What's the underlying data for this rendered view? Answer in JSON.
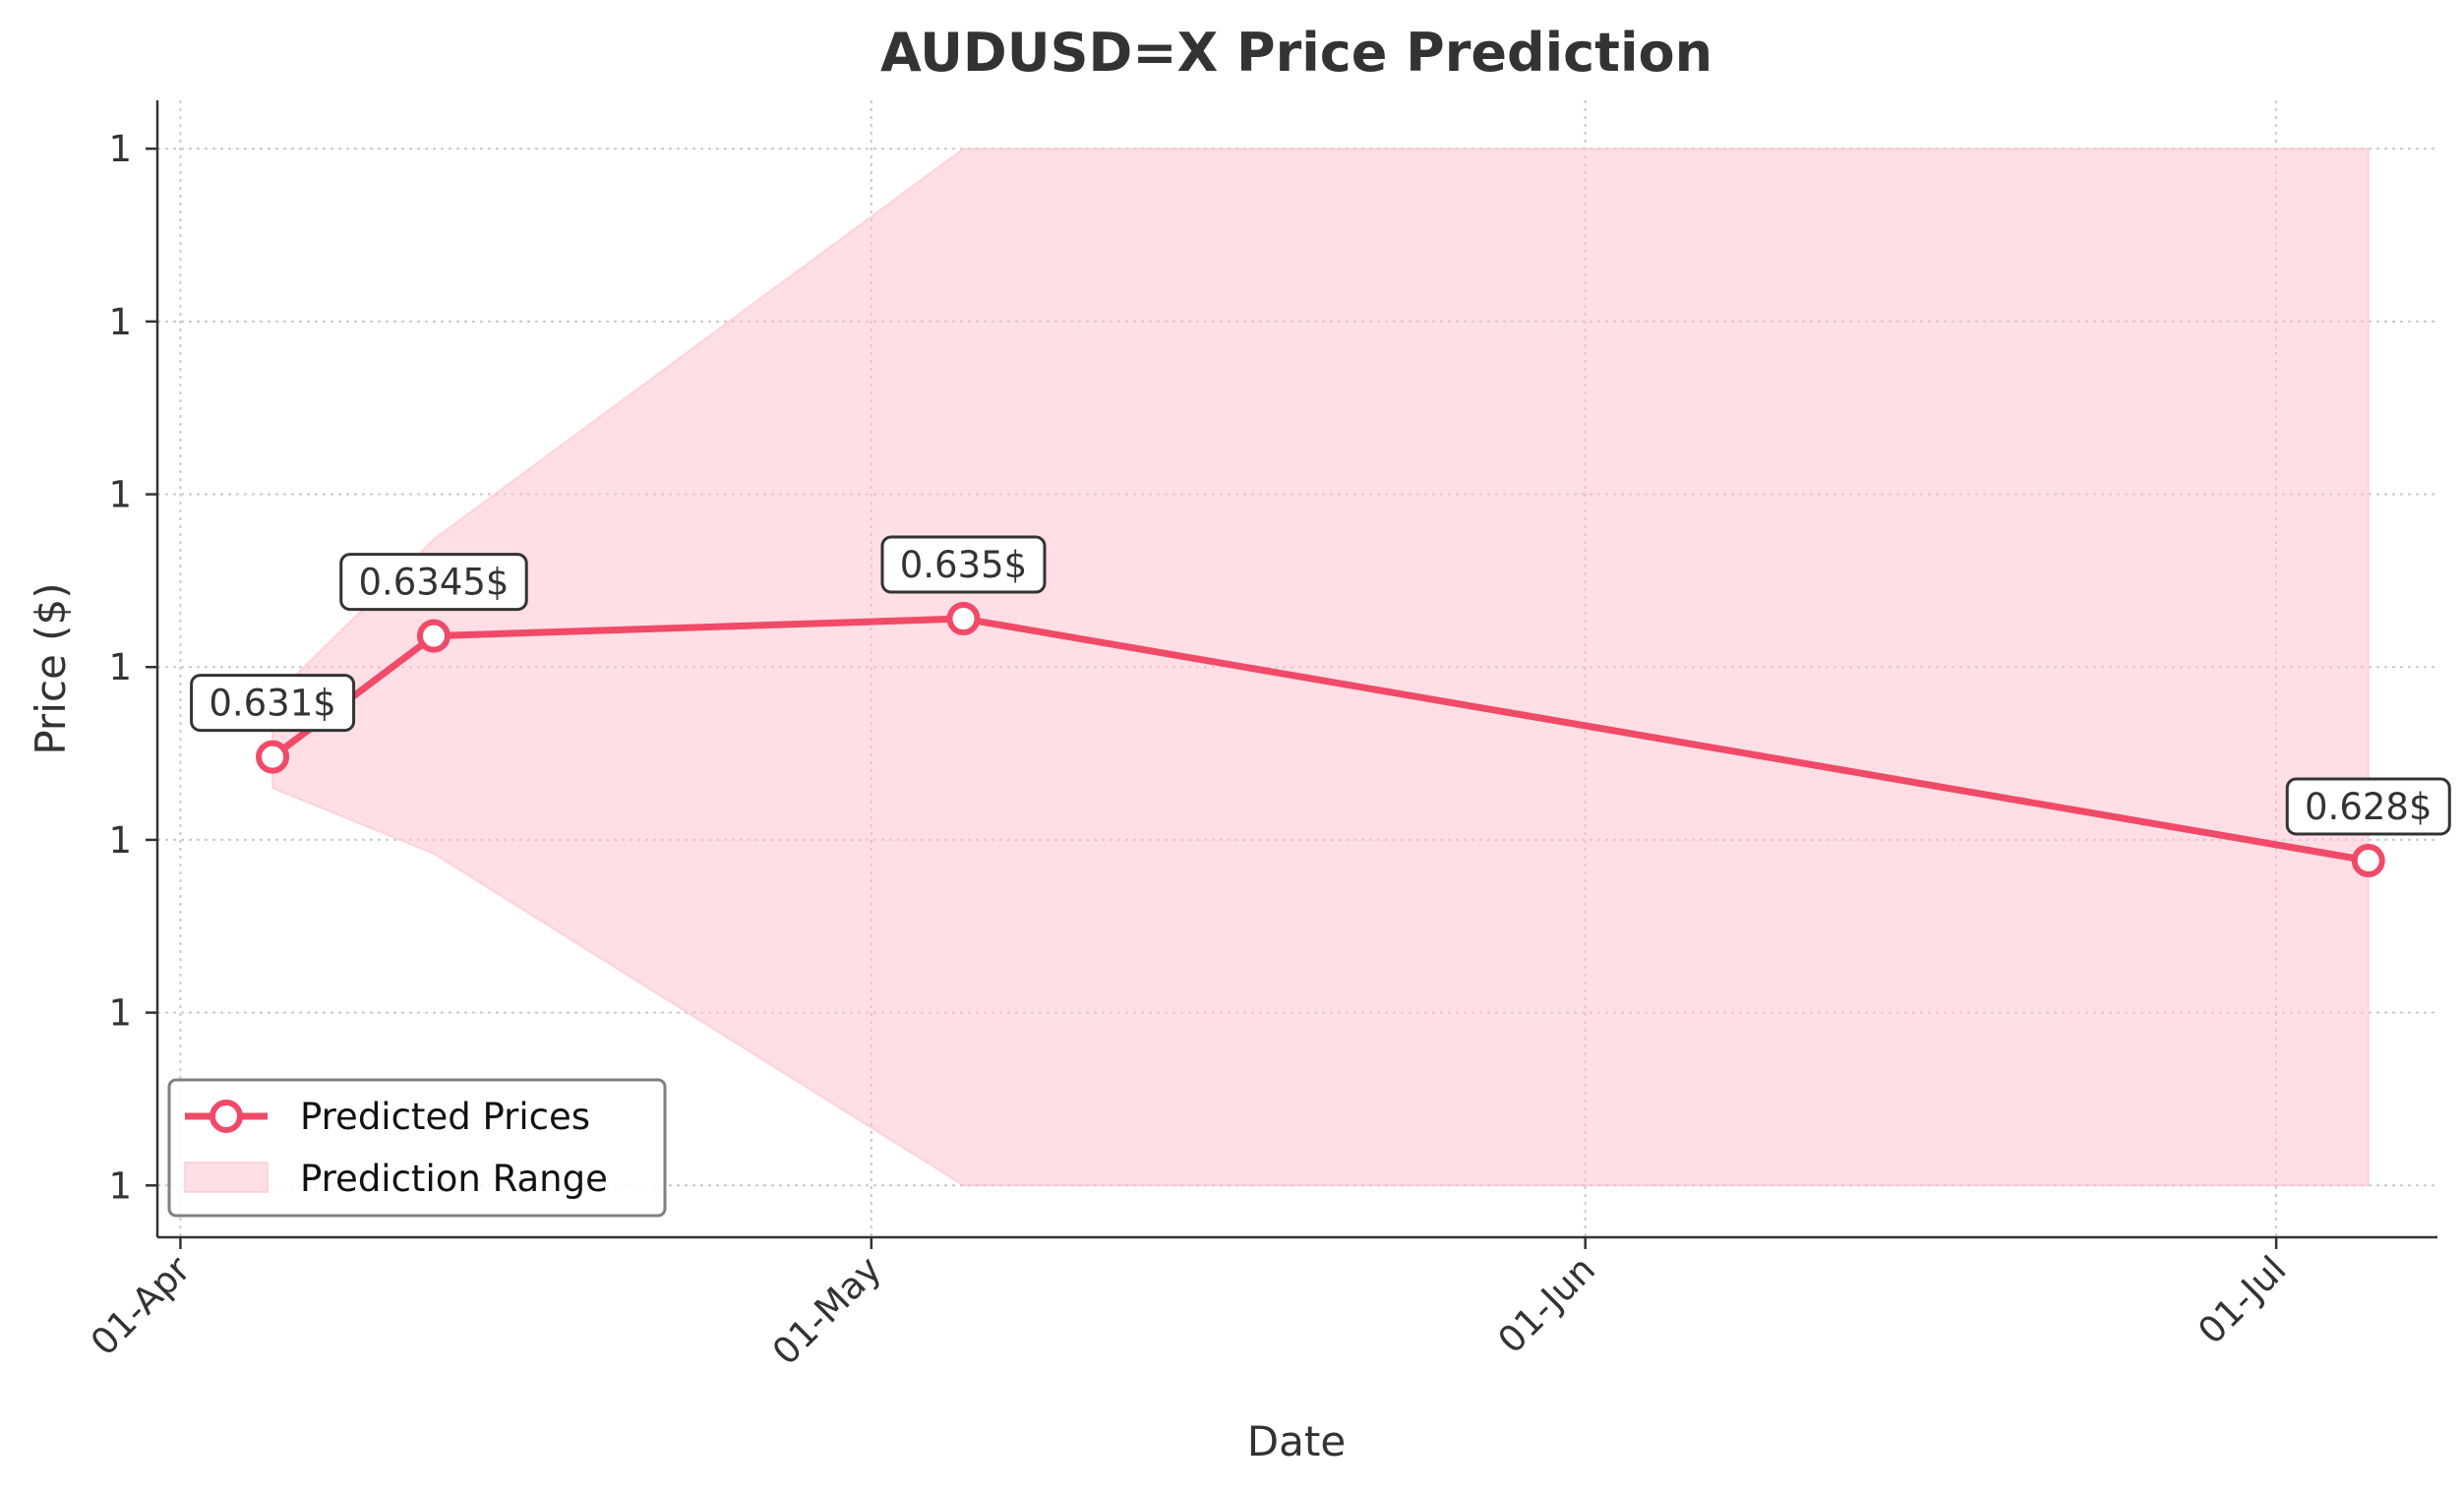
{
  "chart_data": {
    "type": "line",
    "title": "AUDUSD=X Price Prediction",
    "xlabel": "Date",
    "ylabel": "Price ($)",
    "x_ticks": [
      "2024-04-01",
      "2024-05-01",
      "2024-06-01",
      "2024-07-01"
    ],
    "x_tick_labels": [
      "01-Apr",
      "01-May",
      "01-Jun",
      "01-Jul"
    ],
    "y_ticks": [
      0.6186,
      0.6236,
      0.6286,
      0.6336,
      0.6386,
      0.6436,
      0.6486
    ],
    "y_tick_labels": [
      "1",
      "1",
      "1",
      "1",
      "1",
      "1",
      "1"
    ],
    "xlim": [
      "2024-03-31",
      "2024-07-08"
    ],
    "ylim": [
      0.6171,
      0.65
    ],
    "grid": true,
    "legend_position": "lower-left",
    "series": [
      {
        "name": "Predicted Prices",
        "color": "#f04a68",
        "x": [
          "2024-04-05",
          "2024-04-12",
          "2024-05-05",
          "2024-07-05"
        ],
        "y": [
          0.631,
          0.6345,
          0.635,
          0.628
        ]
      }
    ],
    "range": {
      "name": "Prediction Range",
      "color": "#ffc0cb",
      "x": [
        "2024-04-05",
        "2024-04-12",
        "2024-05-05",
        "2024-07-05"
      ],
      "upper": [
        0.6327,
        0.6373,
        0.6486,
        0.6486
      ],
      "lower": [
        0.6301,
        0.6282,
        0.6186,
        0.6186
      ]
    },
    "annotations": [
      {
        "x": "2024-04-05",
        "y": 0.631,
        "text": "0.631$"
      },
      {
        "x": "2024-04-12",
        "y": 0.6345,
        "text": "0.6345$"
      },
      {
        "x": "2024-05-05",
        "y": 0.635,
        "text": "0.635$"
      },
      {
        "x": "2024-07-05",
        "y": 0.628,
        "text": "0.628$"
      }
    ]
  }
}
